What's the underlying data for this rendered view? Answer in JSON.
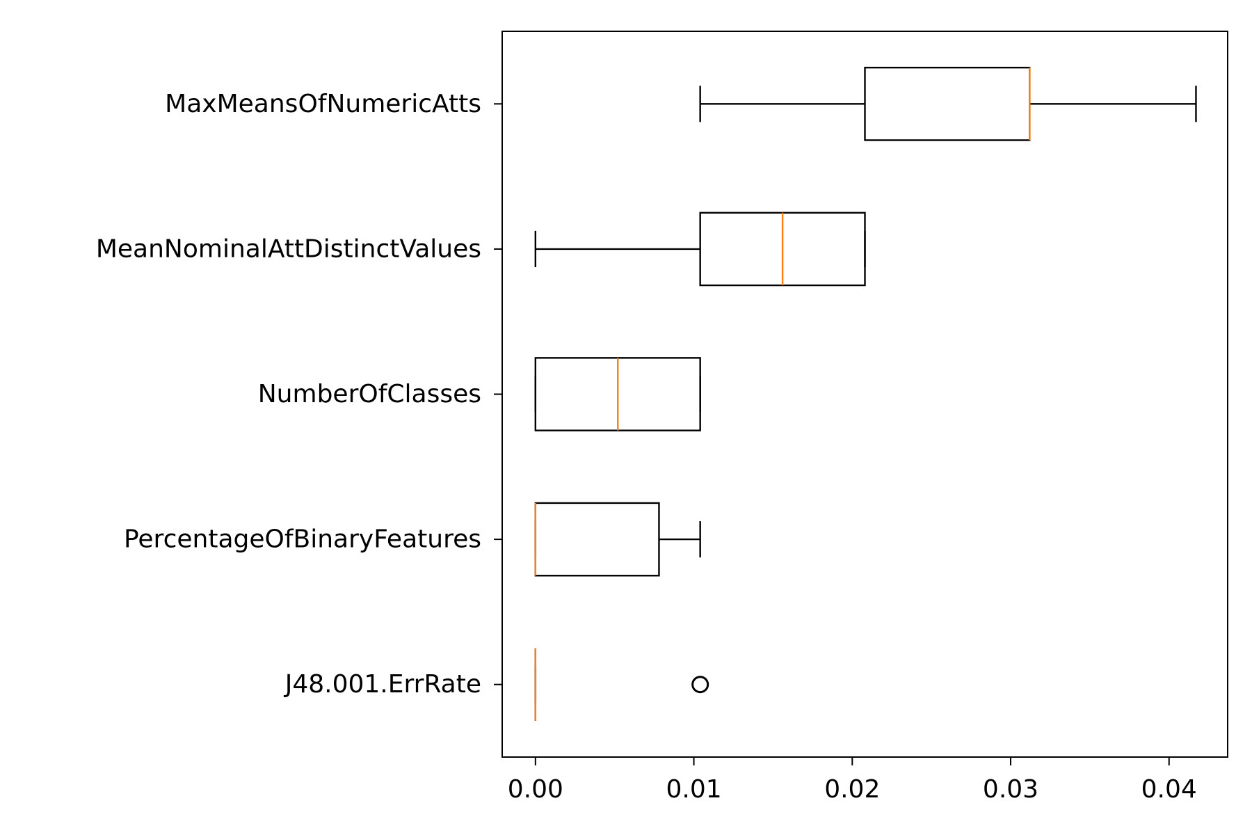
{
  "chart_data": {
    "type": "boxplot",
    "orientation": "horizontal",
    "title": "",
    "xlabel": "",
    "ylabel": "",
    "xlim": [
      -0.0021,
      0.0437
    ],
    "xticks": [
      0.0,
      0.01,
      0.02,
      0.03,
      0.04
    ],
    "xtick_labels": [
      "0.00",
      "0.01",
      "0.02",
      "0.03",
      "0.04"
    ],
    "grid": false,
    "colors": {
      "box": "#000000",
      "median": "#ff7f0e",
      "flier": "#000000"
    },
    "categories": [
      "MaxMeansOfNumericAtts",
      "MeanNominalAttDistinctValues",
      "NumberOfClasses",
      "PercentageOfBinaryFeatures",
      "J48.001.ErrRate"
    ],
    "boxes": [
      {
        "label": "MaxMeansOfNumericAtts",
        "whislo": 0.0104,
        "q1": 0.0208,
        "med": 0.0312,
        "q3": 0.0312,
        "whishi": 0.0417,
        "fliers": []
      },
      {
        "label": "MeanNominalAttDistinctValues",
        "whislo": 0.0,
        "q1": 0.0104,
        "med": 0.0156,
        "q3": 0.0208,
        "whishi": 0.0208,
        "fliers": []
      },
      {
        "label": "NumberOfClasses",
        "whislo": 0.0,
        "q1": 0.0,
        "med": 0.0052,
        "q3": 0.0104,
        "whishi": 0.0104,
        "fliers": []
      },
      {
        "label": "PercentageOfBinaryFeatures",
        "whislo": 0.0,
        "q1": 0.0,
        "med": 0.0,
        "q3": 0.0078,
        "whishi": 0.0104,
        "fliers": []
      },
      {
        "label": "J48.001.ErrRate",
        "whislo": 0.0,
        "q1": 0.0,
        "med": 0.0,
        "q3": 0.0,
        "whishi": 0.0,
        "fliers": [
          0.0104
        ]
      }
    ]
  }
}
